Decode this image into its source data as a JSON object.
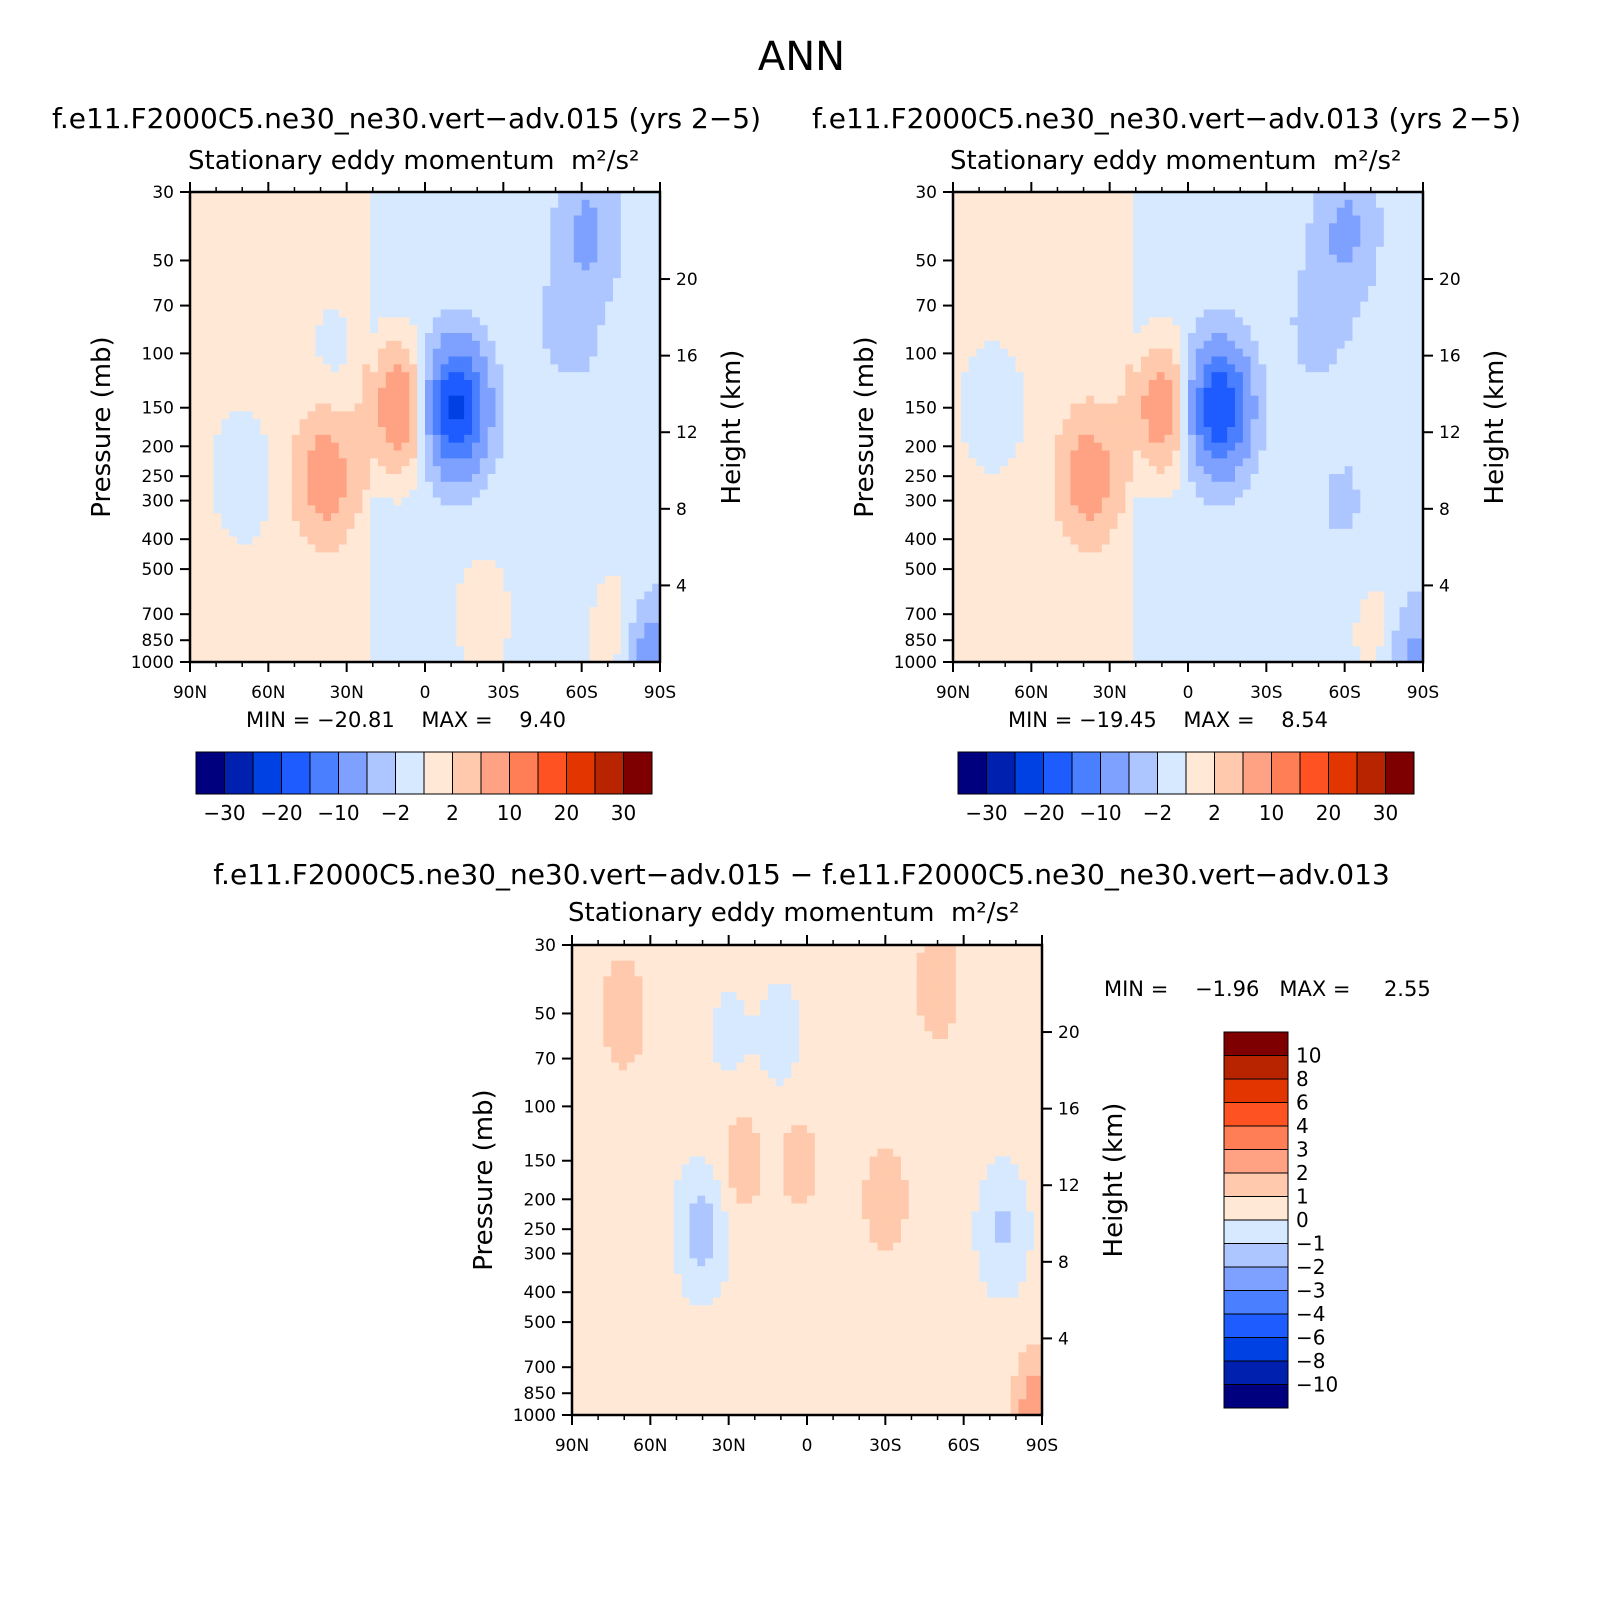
{
  "page": {
    "title": "ANN",
    "case_left_title": "f.e11.F2000C5.ne30_ne30.vert−adv.015 (yrs 2−5)",
    "case_right_title": "f.e11.F2000C5.ne30_ne30.vert−adv.013 (yrs 2−5)",
    "diff_title": "f.e11.F2000C5.ne30_ne30.vert−adv.015 − f.e11.F2000C5.ne30_ne30.vert−adv.013"
  },
  "colors": {
    "abs_scale": [
      "#00007f",
      "#0021b0",
      "#0041e3",
      "#1f5cff",
      "#4a7fff",
      "#7ea1ff",
      "#aec6ff",
      "#d6e9ff",
      "#ffe9d6",
      "#ffc9ad",
      "#ffa283",
      "#ff7e55",
      "#ff5222",
      "#e33500",
      "#b82300",
      "#7f0000"
    ],
    "diff_scale": [
      "#00007f",
      "#0021b0",
      "#0041e3",
      "#1f5cff",
      "#4a7fff",
      "#7ea1ff",
      "#aec6ff",
      "#d6e9ff",
      "#ffe9d6",
      "#ffc9ad",
      "#ffa283",
      "#ff7e55",
      "#ff5222",
      "#e33500",
      "#b82300",
      "#7f0000"
    ]
  },
  "chart_data": [
    {
      "type": "heatmap",
      "id": "left",
      "title": "Stationary eddy momentum",
      "units": "m²/s²",
      "ylabel": "Pressure (mb)",
      "y2label": "Height (km)",
      "x_ticks": [
        "90N",
        "60N",
        "30N",
        "0",
        "30S",
        "60S",
        "90S"
      ],
      "x_values": [
        90,
        60,
        30,
        0,
        -30,
        -60,
        -90
      ],
      "y_ticks": [
        30,
        50,
        70,
        100,
        150,
        200,
        250,
        300,
        400,
        500,
        700,
        850,
        1000
      ],
      "y2_ticks": [
        20,
        16,
        12,
        8,
        4
      ],
      "ylim": [
        30,
        1000
      ],
      "min_label": "MIN =",
      "min": "−20.81",
      "max_label": "MAX =",
      "max": "9.40",
      "colorbar_labels": [
        "−30",
        "−20",
        "−10",
        "−2",
        "2",
        "10",
        "20",
        "30"
      ],
      "features": [
        {
          "lat": -62,
          "p": 40,
          "v": -5
        },
        {
          "lat": -55,
          "p": 80,
          "v": -2.5
        },
        {
          "lat": -50,
          "p": 300,
          "v": -1
        },
        {
          "lat": -12,
          "p": 150,
          "v": -20.81
        },
        {
          "lat": 10,
          "p": 150,
          "v": 9.4
        },
        {
          "lat": 38,
          "p": 250,
          "v": 7
        },
        {
          "lat": 70,
          "p": 250,
          "v": -2
        },
        {
          "lat": 35,
          "p": 100,
          "v": -1
        },
        {
          "lat": -22,
          "p": 700,
          "v": 2
        },
        {
          "lat": -75,
          "p": 850,
          "v": 4
        },
        {
          "lat": -85,
          "p": 1000,
          "v": -8
        }
      ]
    },
    {
      "type": "heatmap",
      "id": "right",
      "title": "Stationary eddy momentum",
      "units": "m²/s²",
      "ylabel": "Pressure (mb)",
      "y2label": "Height (km)",
      "x_ticks": [
        "90N",
        "60N",
        "30N",
        "0",
        "30S",
        "60S",
        "90S"
      ],
      "x_values": [
        90,
        60,
        30,
        0,
        -30,
        -60,
        -90
      ],
      "y_ticks": [
        30,
        50,
        70,
        100,
        150,
        200,
        250,
        300,
        400,
        500,
        700,
        850,
        1000
      ],
      "y2_ticks": [
        20,
        16,
        12,
        8,
        4
      ],
      "ylim": [
        30,
        1000
      ],
      "min_label": "MIN =",
      "min": "−19.45",
      "max_label": "MAX =",
      "max": "8.54",
      "colorbar_labels": [
        "−30",
        "−20",
        "−10",
        "−2",
        "2",
        "10",
        "20",
        "30"
      ],
      "features": [
        {
          "lat": -60,
          "p": 40,
          "v": -5
        },
        {
          "lat": -50,
          "p": 80,
          "v": -2.5
        },
        {
          "lat": 75,
          "p": 150,
          "v": -2
        },
        {
          "lat": -12,
          "p": 150,
          "v": -19.45
        },
        {
          "lat": 10,
          "p": 150,
          "v": 8.54
        },
        {
          "lat": 38,
          "p": 250,
          "v": 7
        },
        {
          "lat": -58,
          "p": 300,
          "v": -1.5
        },
        {
          "lat": -75,
          "p": 850,
          "v": 3
        },
        {
          "lat": -85,
          "p": 1000,
          "v": -6
        }
      ]
    },
    {
      "type": "heatmap",
      "id": "diff",
      "title": "Stationary eddy momentum",
      "units": "m²/s²",
      "ylabel": "Pressure (mb)",
      "y2label": "Height (km)",
      "x_ticks": [
        "90N",
        "60N",
        "30N",
        "0",
        "30S",
        "60S",
        "90S"
      ],
      "x_values": [
        90,
        60,
        30,
        0,
        -30,
        -60,
        -90
      ],
      "y_ticks": [
        30,
        50,
        70,
        100,
        150,
        200,
        250,
        300,
        400,
        500,
        700,
        850,
        1000
      ],
      "y2_ticks": [
        20,
        16,
        12,
        8,
        4
      ],
      "ylim": [
        30,
        1000
      ],
      "min_label": "MIN =",
      "min": "−1.96",
      "max_label": "MAX =",
      "max": "2.55",
      "colorbar_labels": [
        "10",
        "8",
        "6",
        "4",
        "3",
        "2",
        "1",
        "0",
        "−1",
        "−2",
        "−3",
        "−4",
        "−6",
        "−8",
        "−10"
      ],
      "features": [
        {
          "lat": 70,
          "p": 50,
          "v": 1.5
        },
        {
          "lat": -50,
          "p": 40,
          "v": 1.5
        },
        {
          "lat": 40,
          "p": 250,
          "v": -1.96
        },
        {
          "lat": 10,
          "p": 60,
          "v": -0.8
        },
        {
          "lat": 30,
          "p": 60,
          "v": -0.6
        },
        {
          "lat": -30,
          "p": 200,
          "v": 1.5
        },
        {
          "lat": 25,
          "p": 150,
          "v": 1.2
        },
        {
          "lat": 3,
          "p": 150,
          "v": 1.1
        },
        {
          "lat": -75,
          "p": 250,
          "v": -1.5
        },
        {
          "lat": -88,
          "p": 1000,
          "v": 2.55
        }
      ]
    }
  ]
}
